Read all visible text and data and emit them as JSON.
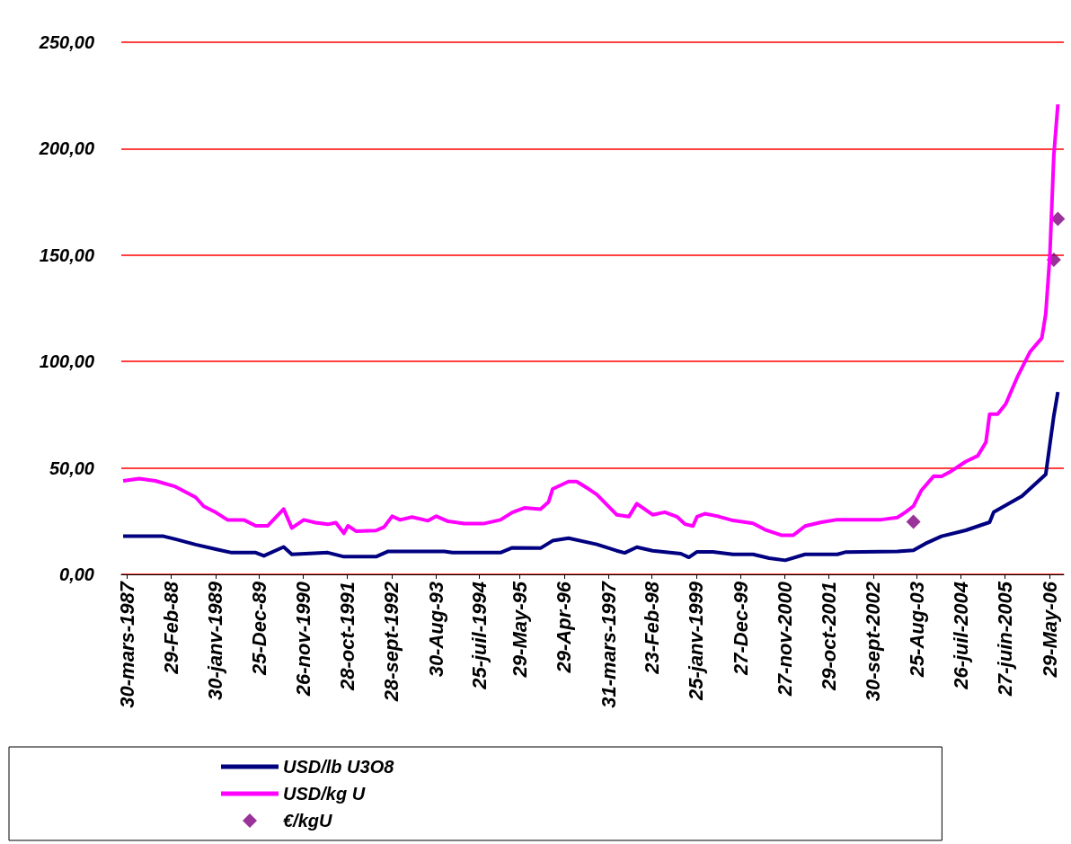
{
  "chart_data": {
    "type": "line",
    "xlim": [
      "1987-02-15",
      "2006-09-15"
    ],
    "ylim": [
      0,
      250
    ],
    "xticks": [
      {
        "value": "1987-03-30",
        "label": "30-mars-1987"
      },
      {
        "value": "1988-02-29",
        "label": "29-Feb-88"
      },
      {
        "value": "1989-01-30",
        "label": "30-janv-1989"
      },
      {
        "value": "1989-12-25",
        "label": "25-Dec-89"
      },
      {
        "value": "1990-11-26",
        "label": "26-nov-1990"
      },
      {
        "value": "1991-10-28",
        "label": "28-oct-1991"
      },
      {
        "value": "1992-09-28",
        "label": "28-sept-1992"
      },
      {
        "value": "1993-08-30",
        "label": "30-Aug-93"
      },
      {
        "value": "1994-07-25",
        "label": "25-juil-1994"
      },
      {
        "value": "1995-05-29",
        "label": "29-May-95"
      },
      {
        "value": "1996-04-29",
        "label": "29-Apr-96"
      },
      {
        "value": "1997-03-31",
        "label": "31-mars-1997"
      },
      {
        "value": "1998-02-23",
        "label": "23-Feb-98"
      },
      {
        "value": "1999-01-25",
        "label": "25-janv-1999"
      },
      {
        "value": "1999-12-27",
        "label": "27-Dec-99"
      },
      {
        "value": "2000-11-27",
        "label": "27-nov-2000"
      },
      {
        "value": "2001-10-29",
        "label": "29-oct-2001"
      },
      {
        "value": "2002-09-30",
        "label": "30-sept-2002"
      },
      {
        "value": "2003-08-25",
        "label": "25-Aug-03"
      },
      {
        "value": "2004-07-26",
        "label": "26-juil-2004"
      },
      {
        "value": "2005-06-27",
        "label": "27-juin-2005"
      },
      {
        "value": "2006-05-29",
        "label": "29-May-06"
      }
    ],
    "yticks": [
      {
        "value": 0,
        "label": "0,00"
      },
      {
        "value": 50,
        "label": "50,00"
      },
      {
        "value": 100,
        "label": "100,00"
      },
      {
        "value": 150,
        "label": "150,00"
      },
      {
        "value": 200,
        "label": "200,00"
      },
      {
        "value": 250,
        "label": "250,00"
      }
    ],
    "grid": "y",
    "legend": "bottom",
    "series": [
      {
        "name": "USD/lb U3O8",
        "color": "#000080",
        "marker": "none",
        "x": [
          "1987-03",
          "1988-01",
          "1988-04",
          "1988-09",
          "1989-02",
          "1989-06",
          "1989-12",
          "1990-02",
          "1990-07",
          "1990-09",
          "1991-06",
          "1991-10",
          "1992-06",
          "1992-09",
          "1993-11",
          "1994-01",
          "1995-01",
          "1995-04",
          "1995-11",
          "1996-02",
          "1996-06",
          "1997-01",
          "1997-06",
          "1997-08",
          "1997-11",
          "1998-03",
          "1998-10",
          "1998-12",
          "1999-02",
          "1999-06",
          "1999-11",
          "2000-04",
          "2000-08",
          "2000-12",
          "2001-05",
          "2002-01",
          "2002-03",
          "2003-04",
          "2003-08",
          "2003-11",
          "2004-03",
          "2004-09",
          "2005-03",
          "2005-04",
          "2005-11",
          "2006-05",
          "2006-07",
          "2006-08"
        ],
        "values": [
          17.9,
          17.9,
          16.5,
          14,
          11.8,
          10.2,
          10.2,
          8.7,
          12.9,
          9.4,
          10.2,
          8.3,
          8.3,
          10.8,
          10.8,
          10.2,
          10.2,
          12.5,
          12.3,
          15.8,
          17,
          14.1,
          11.1,
          10.1,
          12.8,
          11.1,
          9.7,
          8,
          10.6,
          10.6,
          9.4,
          9.4,
          7.6,
          6.6,
          9.4,
          9.4,
          10.4,
          10.8,
          11.3,
          14.5,
          17.9,
          20.7,
          24.5,
          29.2,
          36.7,
          47,
          74.4,
          85.7
        ]
      },
      {
        "name": "USD/kg U",
        "color": "#ff00ff",
        "marker": "none",
        "x": [
          "1987-03",
          "1987-07",
          "1987-11",
          "1988-04",
          "1988-09",
          "1988-11",
          "1989-02",
          "1989-05",
          "1989-09",
          "1989-12",
          "1990-03",
          "1990-07",
          "1990-09",
          "1990-12",
          "1991-03",
          "1991-06",
          "1991-08",
          "1991-10",
          "1991-11",
          "1992-01",
          "1992-06",
          "1992-08",
          "1992-10",
          "1992-12",
          "1993-03",
          "1993-07",
          "1993-09",
          "1993-12",
          "1994-04",
          "1994-09",
          "1995-01",
          "1995-04",
          "1995-07",
          "1995-11",
          "1996-01",
          "1996-02",
          "1996-06",
          "1996-08",
          "1996-11",
          "1997-01",
          "1997-06",
          "1997-09",
          "1997-11",
          "1998-01",
          "1998-03",
          "1998-06",
          "1998-09",
          "1998-11",
          "1999-01",
          "1999-02",
          "1999-04",
          "1999-07",
          "1999-11",
          "2000-04",
          "2000-07",
          "2000-11",
          "2001-02",
          "2001-05",
          "2001-09",
          "2002-01",
          "2002-12",
          "2003-04",
          "2003-06",
          "2003-08",
          "2003-10",
          "2004-01",
          "2004-03",
          "2004-05",
          "2004-09",
          "2004-12",
          "2005-02",
          "2005-03",
          "2005-05",
          "2005-07",
          "2005-10",
          "2006-01",
          "2006-04",
          "2006-05",
          "2006-06",
          "2006-07",
          "2006-08"
        ],
        "values": [
          43.9,
          45,
          43.9,
          41.2,
          36.2,
          32,
          29.1,
          25.6,
          25.6,
          22.8,
          22.8,
          30.7,
          21.8,
          25.6,
          24.3,
          23.5,
          24.3,
          19.3,
          22.8,
          20.3,
          20.6,
          22.2,
          27.3,
          25.6,
          26.9,
          25.2,
          27.3,
          24.9,
          23.9,
          23.9,
          25.6,
          29.1,
          31.2,
          30.6,
          34,
          40.1,
          43.6,
          43.6,
          40.1,
          37.5,
          28,
          27.1,
          33.2,
          30.6,
          28,
          29.2,
          27.1,
          23.6,
          22.7,
          27.1,
          28.5,
          27.4,
          25.3,
          24,
          21,
          18.4,
          18.4,
          22.7,
          24.5,
          25.7,
          25.7,
          26.7,
          29.2,
          32,
          39.5,
          46.1,
          46,
          48,
          53,
          55.7,
          62.1,
          75.3,
          75.3,
          80,
          93.2,
          104.5,
          111,
          122.4,
          149.7,
          196.7,
          220.8
        ]
      },
      {
        "name": "€/kgU",
        "color": "#800080",
        "type": "scatter",
        "marker": "diamond",
        "x": [
          "2003-08",
          "2006-07",
          "2006-08"
        ],
        "values": [
          24.7,
          147.8,
          167
        ]
      }
    ]
  }
}
